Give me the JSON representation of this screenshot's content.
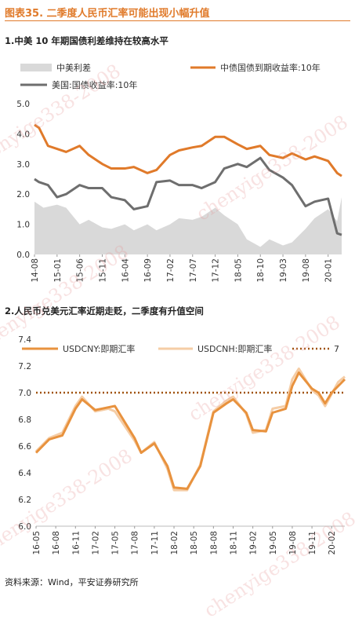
{
  "figure_title": "图表35.  二季度人民币汇率可能出现小幅升值",
  "source": "资料来源：Wind，平安证券研究所",
  "watermark": "chenyige338-2008",
  "colors": {
    "accent": "#e07a2a",
    "spread_area": "#d9d9d9",
    "us_yield": "#6e6e6e",
    "cny": "#e8923e",
    "cnh": "#f5cda6",
    "ref_line": "#a0520d"
  },
  "sections": [
    {
      "title": "1.中美 10 年期国债利差维持在较高水平"
    },
    {
      "title": "2.人民币兑美元汇率近期走贬，二季度有升值空间"
    }
  ],
  "chart_data": [
    {
      "type": "line",
      "title": "1.中美 10 年期国债利差维持在较高水平",
      "ylim": [
        0,
        5
      ],
      "yticks": [
        "0.0",
        "1.0",
        "2.0",
        "3.0",
        "4.0",
        "5.0"
      ],
      "xticks": [
        "14-08",
        "15-01",
        "15-06",
        "15-11",
        "16-04",
        "16-09",
        "17-02",
        "17-07",
        "17-12",
        "18-05",
        "18-10",
        "19-03",
        "19-08",
        "20-01"
      ],
      "grid": false,
      "legend_position": "top",
      "series": [
        {
          "name": "中美利差",
          "kind": "area",
          "x": [
            "14-08",
            "14-10",
            "15-01",
            "15-03",
            "15-06",
            "15-08",
            "15-11",
            "16-01",
            "16-04",
            "16-06",
            "16-09",
            "16-11",
            "17-02",
            "17-04",
            "17-07",
            "17-09",
            "17-12",
            "18-02",
            "18-05",
            "18-07",
            "18-10",
            "18-12",
            "19-03",
            "19-05",
            "19-08",
            "19-10",
            "20-01",
            "20-03",
            "20-04"
          ],
          "values": [
            1.75,
            1.55,
            1.65,
            1.55,
            1.0,
            1.15,
            0.9,
            0.85,
            1.0,
            0.8,
            1.0,
            0.8,
            1.0,
            1.2,
            1.15,
            1.25,
            1.55,
            1.3,
            1.0,
            0.5,
            0.25,
            0.5,
            0.3,
            0.4,
            0.85,
            1.2,
            1.5,
            1.1,
            1.9
          ]
        },
        {
          "name": "中债国债到期收益率:10年",
          "kind": "line",
          "x": [
            "14-08",
            "14-09",
            "14-11",
            "15-01",
            "15-03",
            "15-06",
            "15-08",
            "15-11",
            "16-01",
            "16-04",
            "16-06",
            "16-09",
            "16-11",
            "17-02",
            "17-04",
            "17-07",
            "17-09",
            "17-12",
            "18-02",
            "18-05",
            "18-07",
            "18-10",
            "18-12",
            "19-03",
            "19-05",
            "19-08",
            "19-10",
            "20-01",
            "20-03",
            "20-04"
          ],
          "values": [
            4.3,
            4.2,
            3.6,
            3.5,
            3.4,
            3.6,
            3.3,
            3.0,
            2.85,
            2.85,
            2.9,
            2.7,
            2.8,
            3.3,
            3.45,
            3.55,
            3.6,
            3.9,
            3.9,
            3.65,
            3.5,
            3.6,
            3.3,
            3.2,
            3.35,
            3.15,
            3.25,
            3.1,
            2.7,
            2.6
          ]
        },
        {
          "name": "美国:国债收益率:10年",
          "kind": "line",
          "x": [
            "14-08",
            "14-09",
            "14-11",
            "15-01",
            "15-03",
            "15-06",
            "15-08",
            "15-11",
            "16-01",
            "16-04",
            "16-06",
            "16-09",
            "16-11",
            "17-02",
            "17-04",
            "17-07",
            "17-09",
            "17-12",
            "18-02",
            "18-05",
            "18-07",
            "18-10",
            "18-12",
            "19-03",
            "19-05",
            "19-08",
            "19-10",
            "20-01",
            "20-03",
            "20-04"
          ],
          "values": [
            2.5,
            2.4,
            2.3,
            1.9,
            2.0,
            2.3,
            2.2,
            2.2,
            1.9,
            1.8,
            1.5,
            1.6,
            2.4,
            2.45,
            2.3,
            2.3,
            2.2,
            2.4,
            2.85,
            3.0,
            2.9,
            3.2,
            2.8,
            2.55,
            2.3,
            1.6,
            1.75,
            1.85,
            0.7,
            0.65
          ]
        }
      ]
    },
    {
      "type": "line",
      "title": "2.人民币兑美元汇率近期走贬，二季度有升值空间",
      "ylim": [
        6.0,
        7.4
      ],
      "yticks": [
        "6.0",
        "6.2",
        "6.4",
        "6.6",
        "6.8",
        "7.0",
        "7.2",
        "7.4"
      ],
      "xticks": [
        "16-05",
        "16-08",
        "16-11",
        "17-02",
        "17-05",
        "17-08",
        "17-11",
        "18-02",
        "18-05",
        "18-08",
        "18-11",
        "19-02",
        "19-05",
        "19-08",
        "19-11",
        "20-02"
      ],
      "grid": false,
      "legend_position": "top",
      "series": [
        {
          "name": "USDCNY:即期汇率",
          "kind": "line",
          "x": [
            "16-05",
            "16-07",
            "16-09",
            "16-11",
            "16-12",
            "17-02",
            "17-04",
            "17-05",
            "17-08",
            "17-09",
            "17-11",
            "18-01",
            "18-02",
            "18-04",
            "18-06",
            "18-08",
            "18-10",
            "18-11",
            "19-01",
            "19-02",
            "19-04",
            "19-05",
            "19-07",
            "19-08",
            "19-09",
            "19-11",
            "19-12",
            "20-01",
            "20-02",
            "20-03",
            "20-04"
          ],
          "values": [
            6.55,
            6.65,
            6.68,
            6.88,
            6.95,
            6.87,
            6.89,
            6.9,
            6.66,
            6.55,
            6.62,
            6.45,
            6.29,
            6.28,
            6.45,
            6.85,
            6.92,
            6.95,
            6.85,
            6.72,
            6.71,
            6.85,
            6.88,
            7.05,
            7.15,
            7.03,
            7.0,
            6.92,
            7.0,
            7.05,
            7.1
          ]
        },
        {
          "name": "USDCNH:即期汇率",
          "kind": "line",
          "x": [
            "16-05",
            "16-07",
            "16-09",
            "16-11",
            "16-12",
            "17-02",
            "17-04",
            "17-05",
            "17-08",
            "17-09",
            "17-11",
            "18-01",
            "18-02",
            "18-04",
            "18-06",
            "18-08",
            "18-10",
            "18-11",
            "19-01",
            "19-02",
            "19-04",
            "19-05",
            "19-07",
            "19-08",
            "19-09",
            "19-11",
            "19-12",
            "20-01",
            "20-03",
            "20-04"
          ],
          "values": [
            6.56,
            6.66,
            6.7,
            6.9,
            6.97,
            6.86,
            6.88,
            6.86,
            6.64,
            6.55,
            6.63,
            6.43,
            6.27,
            6.27,
            6.46,
            6.86,
            6.94,
            6.97,
            6.84,
            6.7,
            6.72,
            6.88,
            6.9,
            7.1,
            7.18,
            7.02,
            6.98,
            6.9,
            7.08,
            7.12
          ]
        },
        {
          "name": "7",
          "kind": "reference",
          "value": 7.0
        }
      ]
    }
  ]
}
